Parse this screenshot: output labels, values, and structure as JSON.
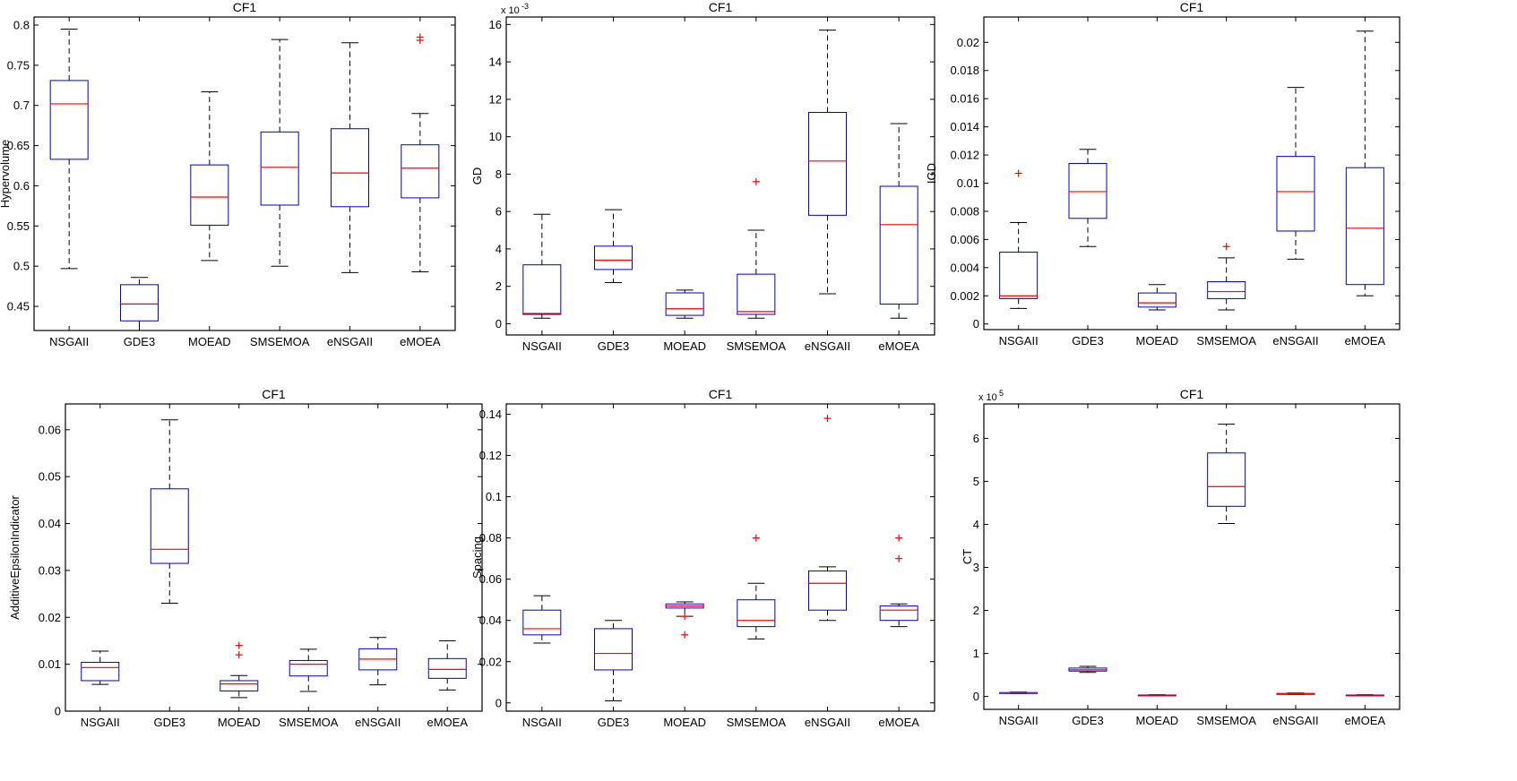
{
  "chart_data": [
    {
      "type": "box",
      "title": "CF1",
      "ylabel": "Hypervolume",
      "exponent": "",
      "categories": [
        "NSGAII",
        "GDE3",
        "MOEAD",
        "SMSEMOA",
        "eNSGAII",
        "eMOEA"
      ],
      "ylim": [
        0.42,
        0.81
      ],
      "yticks": [
        0.45,
        0.5,
        0.55,
        0.6,
        0.65,
        0.7,
        0.75,
        0.8
      ],
      "ytick_labels": [
        "0.45",
        "0.5",
        "0.55",
        "0.6",
        "0.65",
        "0.7",
        "0.75",
        "0.8"
      ],
      "boxes": [
        {
          "min": 0.497,
          "q1": 0.633,
          "median": 0.702,
          "q3": 0.731,
          "max": 0.795,
          "outliers": []
        },
        {
          "min": 0.42,
          "q1": 0.432,
          "median": 0.453,
          "q3": 0.477,
          "max": 0.486,
          "outliers": []
        },
        {
          "min": 0.507,
          "q1": 0.551,
          "median": 0.586,
          "q3": 0.626,
          "max": 0.717,
          "outliers": []
        },
        {
          "min": 0.5,
          "q1": 0.576,
          "median": 0.623,
          "q3": 0.667,
          "max": 0.782,
          "outliers": []
        },
        {
          "min": 0.492,
          "q1": 0.574,
          "median": 0.616,
          "q3": 0.671,
          "max": 0.778,
          "outliers": []
        },
        {
          "min": 0.493,
          "q1": 0.585,
          "median": 0.622,
          "q3": 0.651,
          "max": 0.69,
          "outliers": [
            0.785,
            0.781
          ]
        }
      ]
    },
    {
      "type": "box",
      "title": "CF1",
      "ylabel": "GD",
      "exponent": "x 10-3",
      "exponent_base": "x 10",
      "exponent_power": "-3",
      "categories": [
        "NSGAII",
        "GDE3",
        "MOEAD",
        "SMSEMOA",
        "eNSGAII",
        "eMOEA"
      ],
      "ylim": [
        -0.6,
        16.4
      ],
      "yticks": [
        0,
        2,
        4,
        6,
        8,
        10,
        12,
        14,
        16
      ],
      "ytick_labels": [
        "0",
        "2",
        "4",
        "6",
        "8",
        "10",
        "12",
        "14",
        "16"
      ],
      "boxes": [
        {
          "min": 0.3,
          "q1": 0.5,
          "median": 0.55,
          "q3": 3.15,
          "max": 5.85,
          "outliers": []
        },
        {
          "min": 2.2,
          "q1": 2.9,
          "median": 3.4,
          "q3": 4.15,
          "max": 6.1,
          "outliers": []
        },
        {
          "min": 0.3,
          "q1": 0.45,
          "median": 0.8,
          "q3": 1.65,
          "max": 1.8,
          "outliers": []
        },
        {
          "min": 0.3,
          "q1": 0.5,
          "median": 0.65,
          "q3": 2.65,
          "max": 5.0,
          "outliers": [
            7.6
          ]
        },
        {
          "min": 1.6,
          "q1": 5.8,
          "median": 8.7,
          "q3": 11.3,
          "max": 15.7,
          "outliers": []
        },
        {
          "min": 0.3,
          "q1": 1.05,
          "median": 5.3,
          "q3": 7.35,
          "max": 10.7,
          "outliers": []
        }
      ]
    },
    {
      "type": "box",
      "title": "CF1",
      "ylabel": "IGD",
      "exponent": "",
      "categories": [
        "NSGAII",
        "GDE3",
        "MOEAD",
        "SMSEMOA",
        "eNSGAII",
        "eMOEA"
      ],
      "ylim": [
        -0.0004,
        0.0218
      ],
      "yticks": [
        0,
        0.002,
        0.004,
        0.006,
        0.008,
        0.01,
        0.012,
        0.014,
        0.016,
        0.018,
        0.02
      ],
      "ytick_labels": [
        "0",
        "0.002",
        "0.004",
        "0.006",
        "0.008",
        "0.01",
        "0.012",
        "0.014",
        "0.016",
        "0.018",
        "0.02"
      ],
      "boxes": [
        {
          "min": 0.0011,
          "q1": 0.0018,
          "median": 0.002,
          "q3": 0.0051,
          "max": 0.0072,
          "outliers": [
            0.0107
          ]
        },
        {
          "min": 0.0055,
          "q1": 0.0075,
          "median": 0.0094,
          "q3": 0.0114,
          "max": 0.0124,
          "outliers": []
        },
        {
          "min": 0.001,
          "q1": 0.0012,
          "median": 0.0015,
          "q3": 0.0022,
          "max": 0.0028,
          "outliers": []
        },
        {
          "min": 0.001,
          "q1": 0.0018,
          "median": 0.0023,
          "q3": 0.003,
          "max": 0.0047,
          "outliers": [
            0.0055
          ]
        },
        {
          "min": 0.0046,
          "q1": 0.0066,
          "median": 0.0094,
          "q3": 0.0119,
          "max": 0.0168,
          "outliers": []
        },
        {
          "min": 0.002,
          "q1": 0.0028,
          "median": 0.0068,
          "q3": 0.0111,
          "max": 0.0208,
          "outliers": []
        }
      ]
    },
    {
      "type": "box",
      "title": "CF1",
      "ylabel": "AdditiveEpsilonIndicator",
      "exponent": "",
      "categories": [
        "NSGAII",
        "GDE3",
        "MOEAD",
        "SMSEMOA",
        "eNSGAII",
        "eMOEA"
      ],
      "ylim": [
        0,
        0.0655
      ],
      "yticks": [
        0,
        0.01,
        0.02,
        0.03,
        0.04,
        0.05,
        0.06
      ],
      "ytick_labels": [
        "0",
        "0.01",
        "0.02",
        "0.03",
        "0.04",
        "0.05",
        "0.06"
      ],
      "boxes": [
        {
          "min": 0.0057,
          "q1": 0.0065,
          "median": 0.0093,
          "q3": 0.0104,
          "max": 0.0128,
          "outliers": []
        },
        {
          "min": 0.023,
          "q1": 0.0315,
          "median": 0.0345,
          "q3": 0.0474,
          "max": 0.0621,
          "outliers": []
        },
        {
          "min": 0.0029,
          "q1": 0.0043,
          "median": 0.0058,
          "q3": 0.0065,
          "max": 0.0076,
          "outliers": [
            0.014,
            0.012
          ]
        },
        {
          "min": 0.0042,
          "q1": 0.0075,
          "median": 0.01,
          "q3": 0.0108,
          "max": 0.0132,
          "outliers": []
        },
        {
          "min": 0.0056,
          "q1": 0.0088,
          "median": 0.0111,
          "q3": 0.0133,
          "max": 0.0157,
          "outliers": []
        },
        {
          "min": 0.0045,
          "q1": 0.007,
          "median": 0.0089,
          "q3": 0.0112,
          "max": 0.015,
          "outliers": []
        }
      ]
    },
    {
      "type": "box",
      "title": "CF1",
      "ylabel": "Spacing",
      "exponent": "",
      "categories": [
        "NSGAII",
        "GDE3",
        "MOEAD",
        "SMSEMOA",
        "eNSGAII",
        "eMOEA"
      ],
      "ylim": [
        -0.004,
        0.145
      ],
      "yticks": [
        0,
        0.02,
        0.04,
        0.06,
        0.08,
        0.1,
        0.12,
        0.14
      ],
      "ytick_labels": [
        "0",
        "0.02",
        "0.04",
        "0.06",
        "0.08",
        "0.1",
        "0.12",
        "0.14"
      ],
      "boxes": [
        {
          "min": 0.029,
          "q1": 0.033,
          "median": 0.036,
          "q3": 0.045,
          "max": 0.052,
          "outliers": []
        },
        {
          "min": 0.001,
          "q1": 0.016,
          "median": 0.024,
          "q3": 0.036,
          "max": 0.04,
          "outliers": []
        },
        {
          "min": 0.042,
          "q1": 0.046,
          "median": 0.047,
          "q3": 0.048,
          "max": 0.049,
          "outliers": [
            0.042,
            0.033
          ]
        },
        {
          "min": 0.031,
          "q1": 0.037,
          "median": 0.04,
          "q3": 0.05,
          "max": 0.058,
          "outliers": [
            0.08
          ]
        },
        {
          "min": 0.04,
          "q1": 0.045,
          "median": 0.058,
          "q3": 0.064,
          "max": 0.066,
          "outliers": [
            0.138
          ]
        },
        {
          "min": 0.037,
          "q1": 0.04,
          "median": 0.045,
          "q3": 0.047,
          "max": 0.048,
          "outliers": [
            0.08,
            0.07
          ]
        }
      ]
    },
    {
      "type": "box",
      "title": "CF1",
      "ylabel": "CT",
      "exponent": "x 105",
      "exponent_base": "x 10",
      "exponent_power": "5",
      "categories": [
        "NSGAII",
        "GDE3",
        "MOEAD",
        "SMSEMOA",
        "eNSGAII",
        "eMOEA"
      ],
      "ylim": [
        -0.3,
        6.8
      ],
      "yticks": [
        0,
        1,
        2,
        3,
        4,
        5,
        6
      ],
      "ytick_labels": [
        "0",
        "1",
        "2",
        "3",
        "4",
        "5",
        "6"
      ],
      "boxes": [
        {
          "min": 0.07,
          "q1": 0.08,
          "median": 0.085,
          "q3": 0.09,
          "max": 0.1,
          "outliers": []
        },
        {
          "min": 0.56,
          "q1": 0.59,
          "median": 0.62,
          "q3": 0.66,
          "max": 0.7,
          "outliers": []
        },
        {
          "min": 0.02,
          "q1": 0.025,
          "median": 0.03,
          "q3": 0.035,
          "max": 0.04,
          "outliers": []
        },
        {
          "min": 4.02,
          "q1": 4.42,
          "median": 4.88,
          "q3": 5.66,
          "max": 6.33,
          "outliers": []
        },
        {
          "min": 0.05,
          "q1": 0.06,
          "median": 0.065,
          "q3": 0.07,
          "max": 0.08,
          "outliers": []
        },
        {
          "min": 0.02,
          "q1": 0.025,
          "median": 0.03,
          "q3": 0.035,
          "max": 0.04,
          "outliers": []
        }
      ]
    }
  ]
}
